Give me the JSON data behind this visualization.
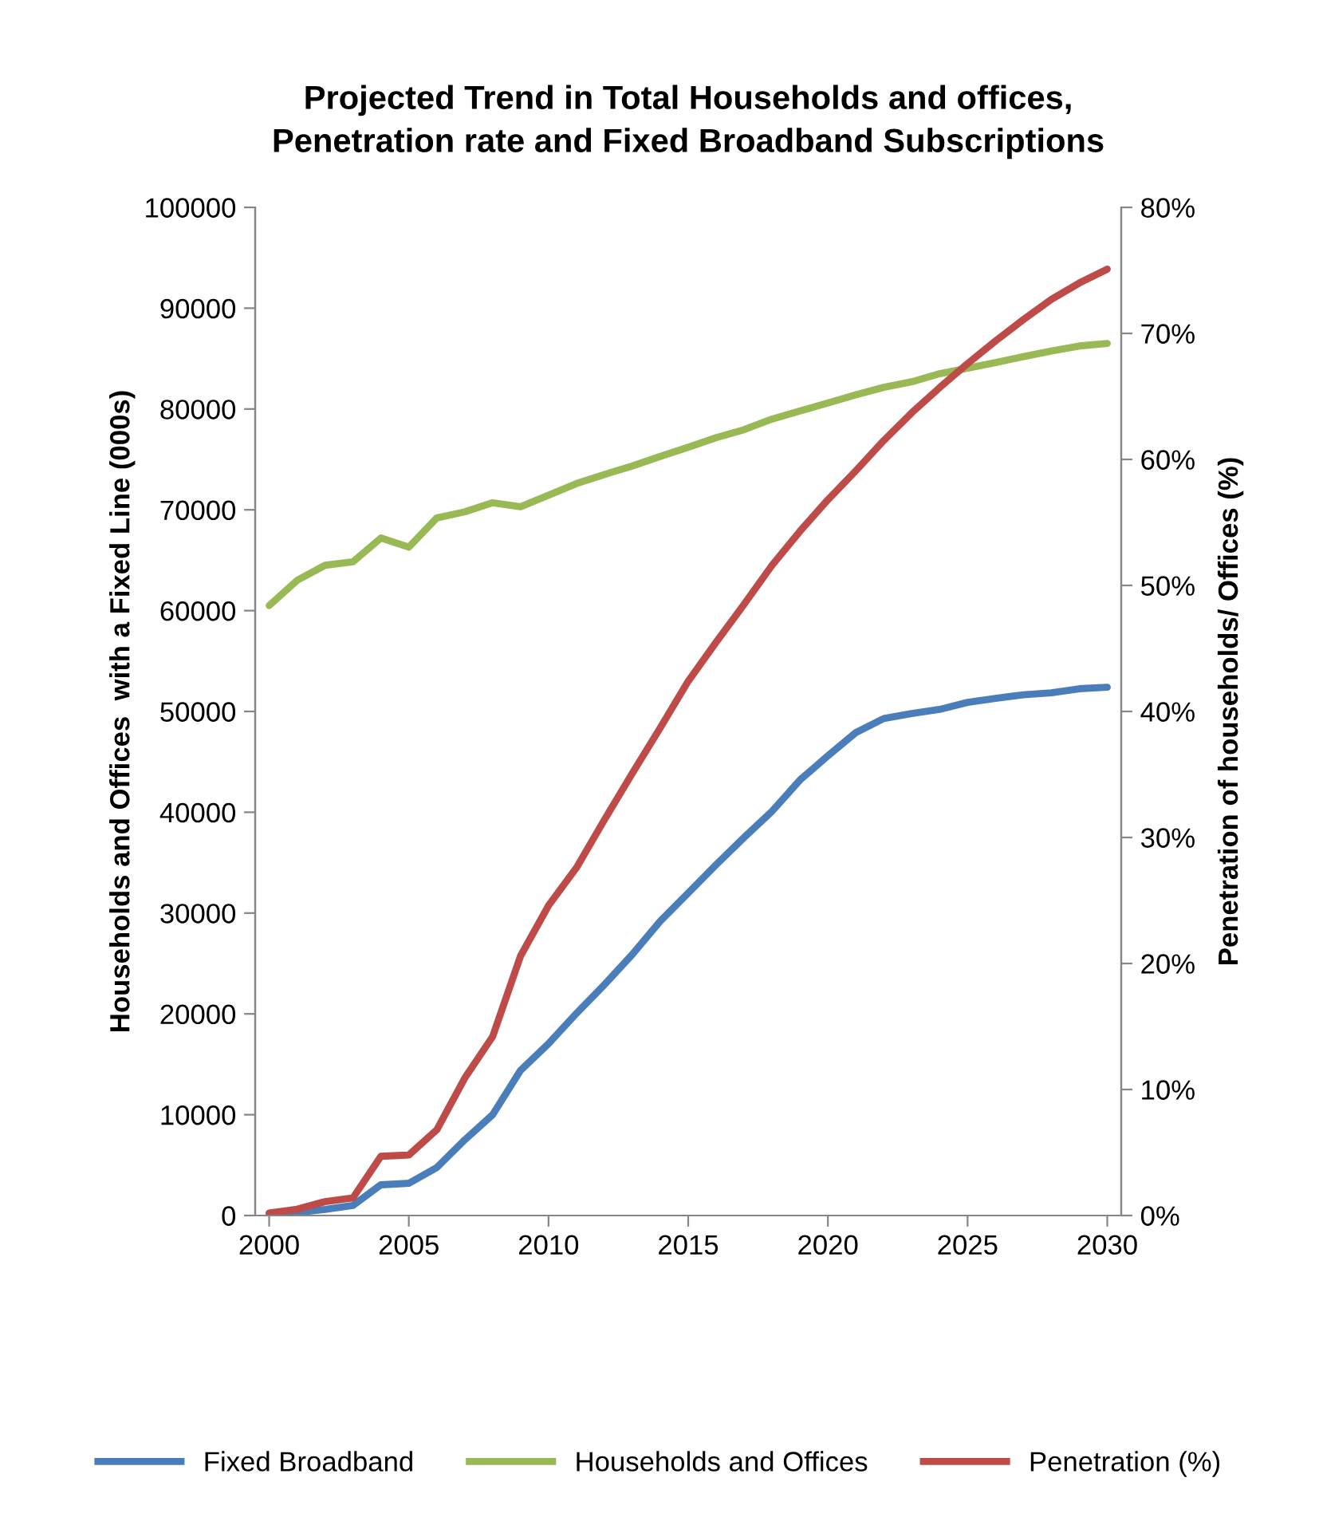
{
  "chart_data": {
    "type": "line",
    "title": "Projected Trend in Total Households and offices,\nPenetration rate and Fixed Broadband Subscriptions",
    "ylabel": "Households and Offices  with a Fixed Line (000s)",
    "y2label": "Penetration of households/ Offices (%)",
    "x": [
      2000,
      2001,
      2002,
      2003,
      2004,
      2005,
      2006,
      2007,
      2008,
      2009,
      2010,
      2011,
      2012,
      2013,
      2014,
      2015,
      2016,
      2017,
      2018,
      2019,
      2020,
      2021,
      2022,
      2023,
      2024,
      2025,
      2026,
      2027,
      2028,
      2029,
      2030
    ],
    "xlim": [
      1999.5,
      2030.5
    ],
    "xticks": [
      2000,
      2005,
      2010,
      2015,
      2020,
      2025,
      2030
    ],
    "ylim": [
      0,
      100000
    ],
    "yticks": [
      0,
      10000,
      20000,
      30000,
      40000,
      50000,
      60000,
      70000,
      80000,
      90000,
      100000
    ],
    "y2lim": [
      0,
      80
    ],
    "y2ticks": [
      {
        "value": 0,
        "label": "0%"
      },
      {
        "value": 10,
        "label": "10%"
      },
      {
        "value": 20,
        "label": "20%"
      },
      {
        "value": 30,
        "label": "30%"
      },
      {
        "value": 40,
        "label": "40%"
      },
      {
        "value": 50,
        "label": "50%"
      },
      {
        "value": 60,
        "label": "60%"
      },
      {
        "value": 70,
        "label": "70%"
      },
      {
        "value": 80,
        "label": "80%"
      }
    ],
    "grid": false,
    "legend": "bottom",
    "marker": "none",
    "line_style": "solid",
    "series": [
      {
        "name": "Fixed Broadband",
        "color": "#4a7ebb",
        "values": [
          100,
          300,
          600,
          1000,
          3050,
          3200,
          4750,
          7500,
          10000,
          14400,
          17050,
          20050,
          22900,
          25900,
          29200,
          32000,
          34800,
          37500,
          40100,
          43200,
          45600,
          47900,
          49300,
          49800,
          50200,
          50900,
          51300,
          51650,
          51850,
          52250,
          52400
        ]
      },
      {
        "name": "Households and Offices",
        "color": "#98b954",
        "values": [
          60500,
          63000,
          64500,
          64850,
          67200,
          66300,
          69200,
          69800,
          70700,
          70300,
          71450,
          72600,
          73500,
          74350,
          75300,
          76200,
          77150,
          77950,
          79000,
          79800,
          80600,
          81400,
          82150,
          82700,
          83500,
          84050,
          84600,
          85200,
          85750,
          86250,
          86500
        ]
      },
      {
        "name": "Penetration (%)",
        "color": "#be4b48",
        "axis": "y2",
        "values": [
          0.2,
          0.5,
          1.1,
          1.4,
          4.7,
          4.8,
          6.8,
          10.9,
          14.2,
          20.6,
          24.6,
          27.6,
          31.4,
          35.1,
          38.7,
          42.4,
          45.5,
          48.5,
          51.6,
          54.3,
          56.8,
          59.1,
          61.5,
          63.7,
          65.7,
          67.6,
          69.4,
          71.1,
          72.7,
          74.0,
          75.1
        ]
      }
    ]
  }
}
